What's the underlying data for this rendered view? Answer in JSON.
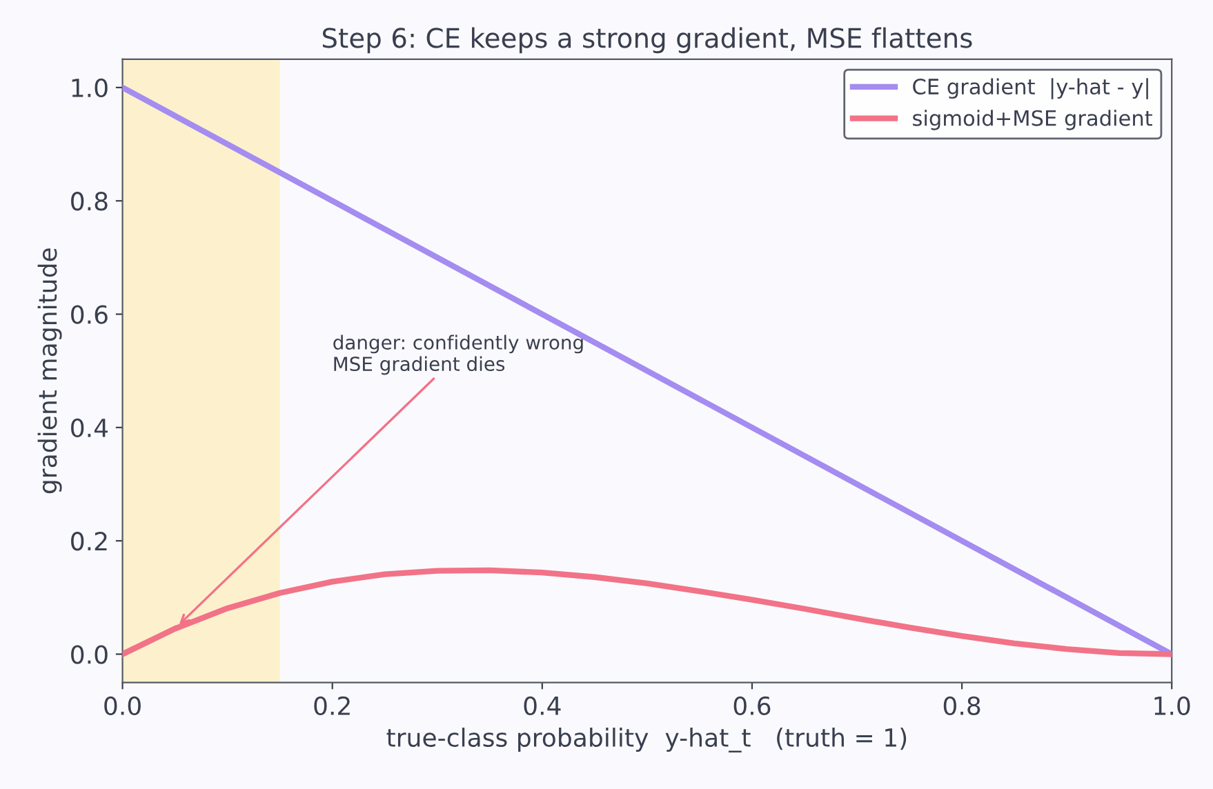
{
  "chart_data": {
    "type": "line",
    "title": "Step 6: CE keeps a strong gradient, MSE flattens",
    "xlabel": "true-class probability  y-hat_t   (truth = 1)",
    "ylabel": "gradient magnitude",
    "x": [
      0,
      0.05,
      0.1,
      0.15,
      0.2,
      0.25,
      0.3,
      0.35,
      0.4,
      0.45,
      0.5,
      0.55,
      0.6,
      0.65,
      0.7,
      0.75,
      0.8,
      0.85,
      0.9,
      0.95,
      1
    ],
    "series": [
      {
        "name": "CE gradient  |y-hat - y|",
        "color": "#a48cf0",
        "x": [
          0,
          1
        ],
        "values": [
          1,
          0
        ]
      },
      {
        "name": "sigmoid+MSE gradient",
        "color": "#f27287",
        "values": [
          0,
          0.045,
          0.081,
          0.108,
          0.128,
          0.141,
          0.147,
          0.148,
          0.144,
          0.136,
          0.125,
          0.111,
          0.096,
          0.08,
          0.063,
          0.047,
          0.032,
          0.019,
          0.009,
          0.002,
          0
        ]
      }
    ],
    "bands": [
      {
        "axis": "x",
        "from": 0,
        "to": 0.15,
        "color": "#fcf1cc"
      }
    ],
    "annotations": [
      {
        "text": "danger: confidently wrong\nMSE gradient dies",
        "x": 0.05,
        "y": 0.045
      }
    ],
    "xlim": [
      0,
      1
    ],
    "ylim": [
      -0.05,
      1.05
    ],
    "xticks": [
      {
        "value": 0,
        "label": "0.0"
      },
      0.2,
      0.4,
      0.6,
      0.8,
      {
        "value": 1,
        "label": "1.0"
      }
    ],
    "yticks": [
      {
        "value": 0,
        "label": "0.0"
      },
      0.2,
      0.4,
      0.6,
      0.8,
      {
        "value": 1,
        "label": "1.0"
      }
    ],
    "grid": false,
    "legend": "top right",
    "marker": "none",
    "line_style": "solid"
  }
}
